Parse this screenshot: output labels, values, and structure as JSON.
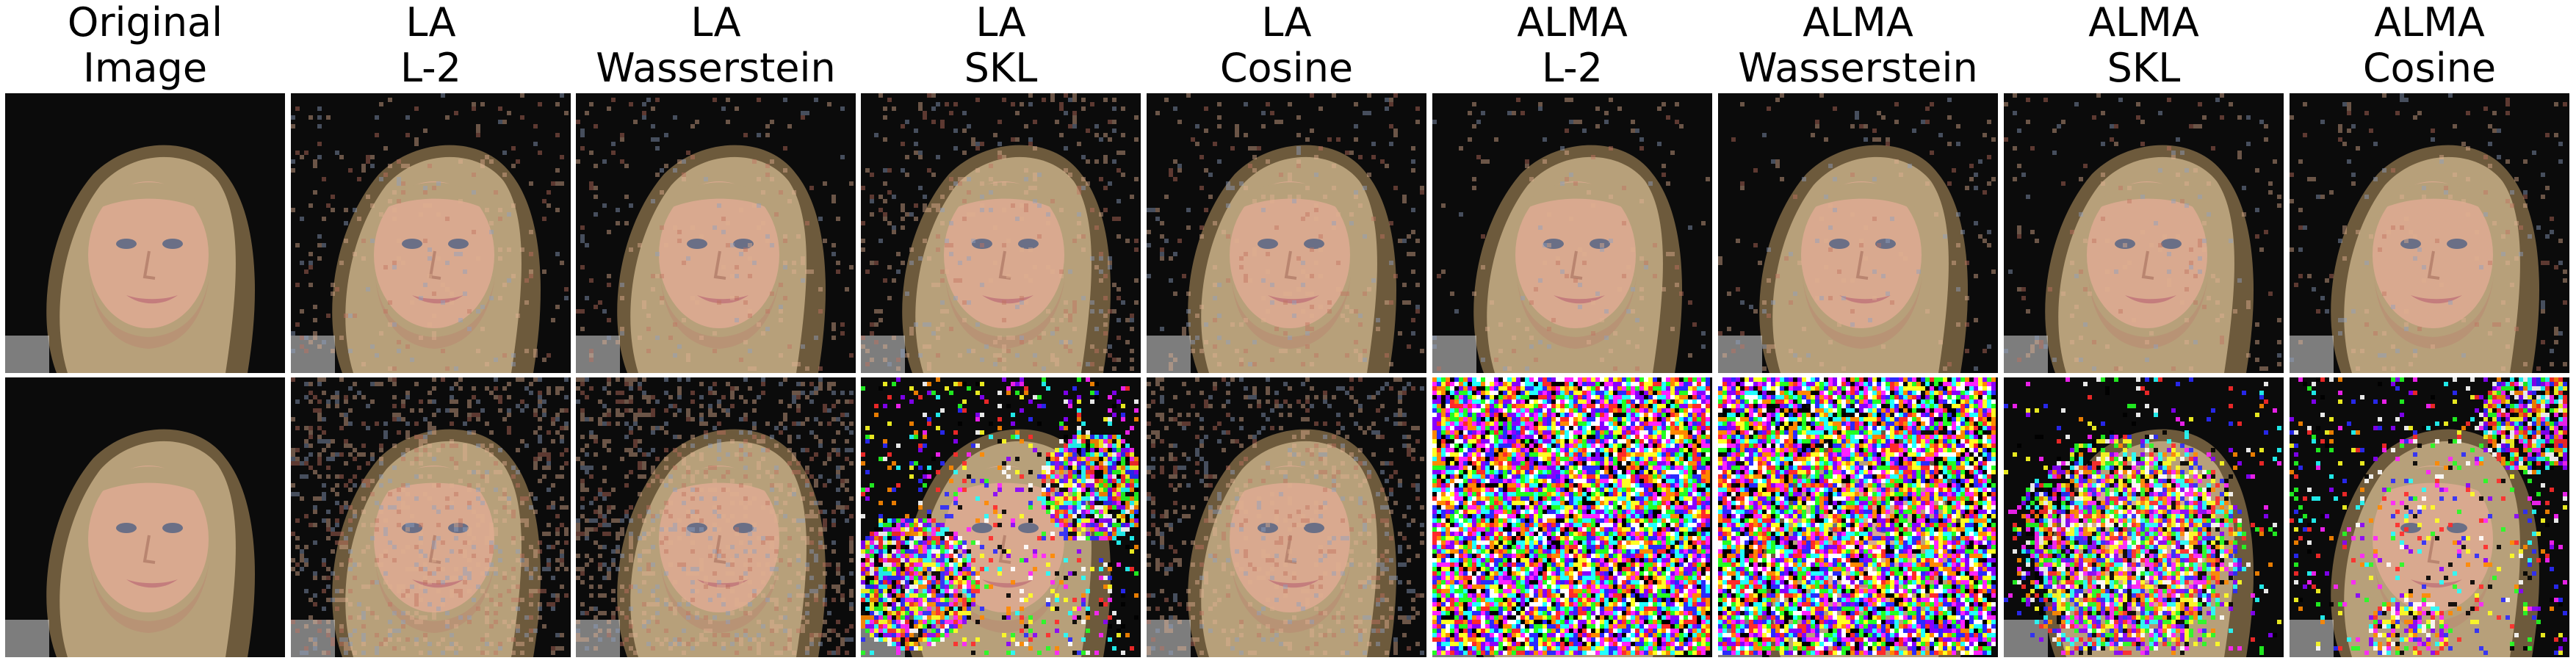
{
  "columns": [
    {
      "line1": "Original",
      "line2": "Image",
      "noise_clean": 0,
      "noise_adv": 0,
      "variant": "clean"
    },
    {
      "line1": "LA",
      "line2": "L-2",
      "noise_clean": 0.06,
      "noise_adv": 0.22,
      "variant": "grain"
    },
    {
      "line1": "LA",
      "line2": "Wasserstein",
      "noise_clean": 0.06,
      "noise_adv": 0.24,
      "variant": "grain"
    },
    {
      "line1": "LA",
      "line2": "SKL",
      "noise_clean": 0.1,
      "noise_adv": 0.45,
      "variant": "skl"
    },
    {
      "line1": "LA",
      "line2": "Cosine",
      "noise_clean": 0.08,
      "noise_adv": 0.2,
      "variant": "grain"
    },
    {
      "line1": "ALMA",
      "line2": "L-2",
      "noise_clean": 0.04,
      "noise_adv": 1.0,
      "variant": "full"
    },
    {
      "line1": "ALMA",
      "line2": "Wasserstein",
      "noise_clean": 0.04,
      "noise_adv": 0.95,
      "variant": "full"
    },
    {
      "line1": "ALMA",
      "line2": "SKL",
      "noise_clean": 0.05,
      "noise_adv": 0.8,
      "variant": "center"
    },
    {
      "line1": "ALMA",
      "line2": "Cosine",
      "noise_clean": 0.05,
      "noise_adv": 0.35,
      "variant": "corner"
    }
  ],
  "colors": {
    "background": "#0b0b0b",
    "hair": "#b7a07a",
    "hair_dark": "#6d5a3c",
    "skin": "#d9a98f",
    "skin_shadow": "#b98570",
    "eye": "#6a6f86",
    "mouth": "#c47d7d"
  }
}
